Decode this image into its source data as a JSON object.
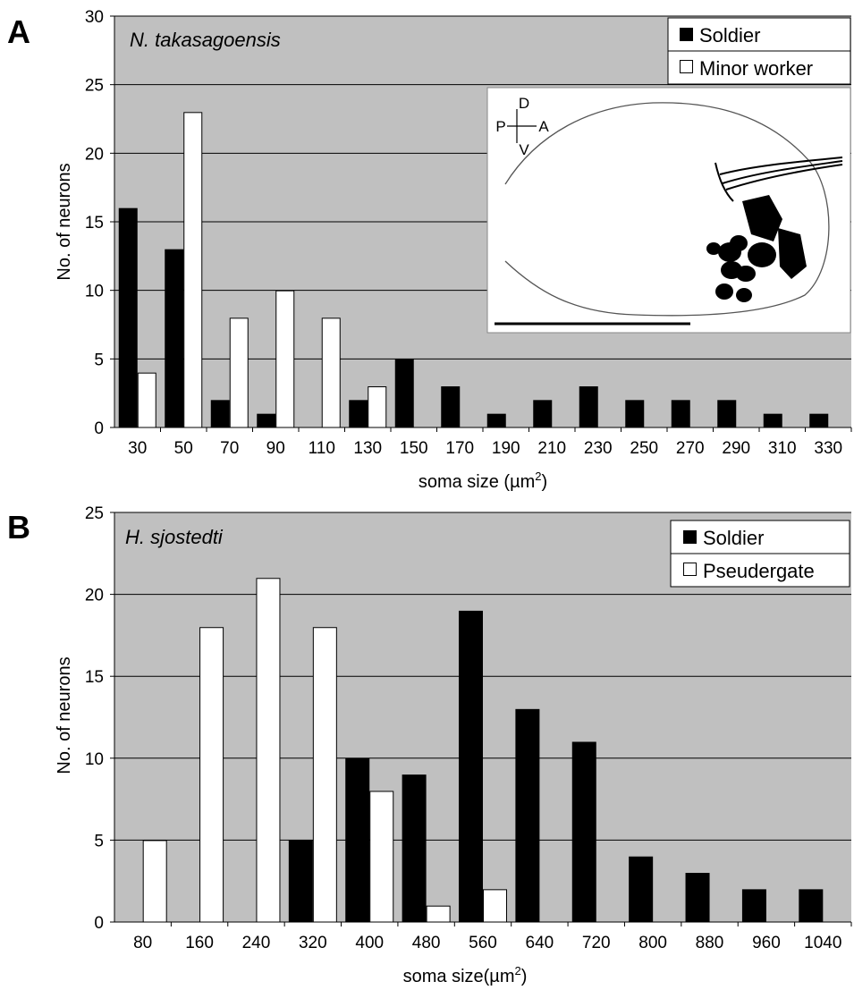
{
  "chart_data": [
    {
      "panel_label": "A",
      "type": "bar",
      "title": "N. takasagoensis",
      "xlabel": "soma size (µm",
      "xlabel_sup": "2",
      "xlabel_tail": ")",
      "ylabel": "No. of neurons",
      "ylim": [
        0,
        30
      ],
      "yticks": [
        0,
        5,
        10,
        15,
        20,
        25,
        30
      ],
      "categories": [
        "30",
        "50",
        "70",
        "90",
        "110",
        "130",
        "150",
        "170",
        "190",
        "210",
        "230",
        "250",
        "270",
        "290",
        "310",
        "330"
      ],
      "series": [
        {
          "name": "Soldier",
          "color": "#000000",
          "values": [
            16,
            13,
            2,
            1,
            0,
            2,
            5,
            3,
            1,
            2,
            3,
            2,
            2,
            2,
            1,
            1
          ]
        },
        {
          "name": "Minor worker",
          "color": "#ffffff",
          "values": [
            4,
            23,
            8,
            10,
            8,
            3,
            0,
            0,
            0,
            0,
            0,
            0,
            0,
            0,
            0,
            0
          ]
        }
      ],
      "legend_position": "top-right",
      "grid": true,
      "inset": {
        "orientation": {
          "dorsal": "D",
          "ventral": "V",
          "posterior": "P",
          "anterior": "A"
        }
      }
    },
    {
      "panel_label": "B",
      "type": "bar",
      "title": "H. sjostedti",
      "xlabel": "soma size(µm",
      "xlabel_sup": "2",
      "xlabel_tail": ")",
      "ylabel": "No. of neurons",
      "ylim": [
        0,
        25
      ],
      "yticks": [
        0,
        5,
        10,
        15,
        20,
        25
      ],
      "categories": [
        "80",
        "160",
        "240",
        "320",
        "400",
        "480",
        "560",
        "640",
        "720",
        "800",
        "880",
        "960",
        "1040"
      ],
      "series": [
        {
          "name": "Soldier",
          "color": "#000000",
          "values": [
            0,
            0,
            0,
            5,
            10,
            9,
            19,
            13,
            11,
            4,
            3,
            2,
            2
          ]
        },
        {
          "name": "Pseudergate",
          "color": "#ffffff",
          "values": [
            5,
            18,
            21,
            18,
            8,
            1,
            2,
            0,
            0,
            0,
            0,
            0,
            0
          ]
        }
      ],
      "legend_position": "top-right",
      "grid": true
    }
  ]
}
